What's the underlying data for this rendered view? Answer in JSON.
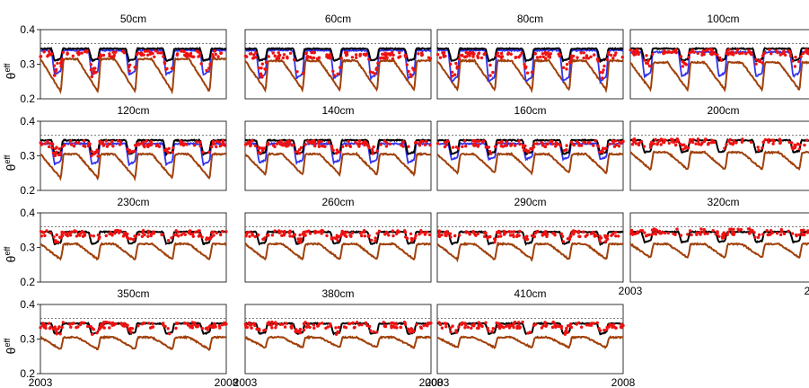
{
  "figure": {
    "y_label": "θ",
    "y_label_sup": "eff",
    "y_ticks": [
      "0.2",
      "0.3",
      "0.4"
    ],
    "x_tick_start": "2003",
    "x_tick_end": "2008",
    "colors": {
      "black_model": "#000000",
      "blue_model": "#3333ee",
      "brown_model": "#a0400a",
      "observed_points": "#ee1111",
      "reference_dashed": "#555555"
    }
  },
  "chart_data": {
    "type": "line",
    "layout_note_panels": 15,
    "ylim": [
      0.2,
      0.4
    ],
    "xlim": [
      2003,
      2008
    ],
    "reference_line_y": 0.36,
    "grid": false,
    "legend": "none",
    "panels": [
      {
        "title": "50cm",
        "black": 0.345,
        "black_dip": 0.31,
        "blue": 0.34,
        "blue_dip": 0.27,
        "brown": 0.315,
        "brown_dip": 0.22,
        "red": 0.33,
        "red_spread": 0.045
      },
      {
        "title": "60cm",
        "black": 0.345,
        "black_dip": 0.31,
        "blue": 0.34,
        "blue_dip": 0.26,
        "brown": 0.31,
        "brown_dip": 0.225,
        "red": 0.325,
        "red_spread": 0.05
      },
      {
        "title": "80cm",
        "black": 0.345,
        "black_dip": 0.31,
        "blue": 0.34,
        "blue_dip": 0.25,
        "brown": 0.31,
        "brown_dip": 0.225,
        "red": 0.325,
        "red_spread": 0.045
      },
      {
        "title": "100cm",
        "black": 0.345,
        "black_dip": 0.31,
        "blue": 0.335,
        "blue_dip": 0.265,
        "brown": 0.305,
        "brown_dip": 0.225,
        "red": 0.335,
        "red_spread": 0.03
      },
      {
        "title": "120cm",
        "black": 0.345,
        "black_dip": 0.305,
        "blue": 0.335,
        "blue_dip": 0.275,
        "brown": 0.305,
        "brown_dip": 0.235,
        "red": 0.335,
        "red_spread": 0.025
      },
      {
        "title": "140cm",
        "black": 0.345,
        "black_dip": 0.305,
        "blue": 0.335,
        "blue_dip": 0.28,
        "brown": 0.305,
        "brown_dip": 0.245,
        "red": 0.335,
        "red_spread": 0.02
      },
      {
        "title": "160cm",
        "black": 0.345,
        "black_dip": 0.305,
        "blue": 0.335,
        "blue_dip": 0.29,
        "brown": 0.305,
        "brown_dip": 0.25,
        "red": 0.335,
        "red_spread": 0.02
      },
      {
        "title": "200cm",
        "black": 0.345,
        "black_dip": 0.31,
        "blue": null,
        "blue_dip": null,
        "brown": 0.31,
        "brown_dip": 0.26,
        "red": 0.34,
        "red_spread": 0.015
      },
      {
        "title": "230cm",
        "black": 0.345,
        "black_dip": 0.31,
        "blue": null,
        "blue_dip": null,
        "brown": 0.31,
        "brown_dip": 0.265,
        "red": 0.34,
        "red_spread": 0.015
      },
      {
        "title": "260cm",
        "black": 0.345,
        "black_dip": 0.31,
        "blue": null,
        "blue_dip": null,
        "brown": 0.31,
        "brown_dip": 0.265,
        "red": 0.34,
        "red_spread": 0.015
      },
      {
        "title": "290cm",
        "black": 0.345,
        "black_dip": 0.31,
        "blue": null,
        "blue_dip": null,
        "brown": 0.31,
        "brown_dip": 0.265,
        "red": 0.34,
        "red_spread": 0.015
      },
      {
        "title": "320cm",
        "black": 0.345,
        "black_dip": 0.315,
        "blue": null,
        "blue_dip": null,
        "brown": 0.31,
        "brown_dip": 0.27,
        "red": 0.345,
        "red_spread": 0.012
      },
      {
        "title": "350cm",
        "black": 0.345,
        "black_dip": 0.315,
        "blue": null,
        "blue_dip": null,
        "brown": 0.305,
        "brown_dip": 0.27,
        "red": 0.34,
        "red_spread": 0.015
      },
      {
        "title": "380cm",
        "black": 0.345,
        "black_dip": 0.315,
        "blue": null,
        "blue_dip": null,
        "brown": 0.305,
        "brown_dip": 0.275,
        "red": 0.34,
        "red_spread": 0.015
      },
      {
        "title": "410cm",
        "black": 0.345,
        "black_dip": 0.315,
        "blue": null,
        "blue_dip": null,
        "brown": 0.305,
        "brown_dip": 0.275,
        "red": 0.34,
        "red_spread": 0.015
      }
    ]
  }
}
